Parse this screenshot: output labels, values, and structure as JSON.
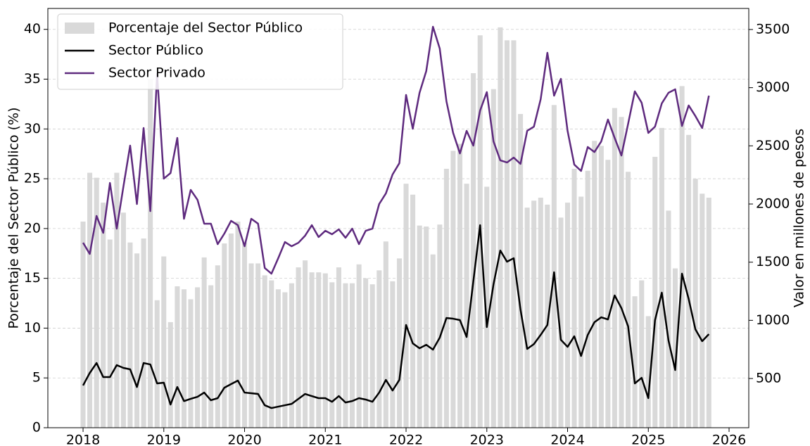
{
  "chart_data": {
    "type": "bar_line",
    "x": [
      2018,
      2018.083,
      2018.167,
      2018.25,
      2018.333,
      2018.417,
      2018.5,
      2018.583,
      2018.667,
      2018.75,
      2018.833,
      2018.917,
      2019,
      2019.083,
      2019.167,
      2019.25,
      2019.333,
      2019.417,
      2019.5,
      2019.583,
      2019.667,
      2019.75,
      2019.833,
      2019.917,
      2020,
      2020.083,
      2020.167,
      2020.25,
      2020.333,
      2020.417,
      2020.5,
      2020.583,
      2020.667,
      2020.75,
      2020.833,
      2020.917,
      2021,
      2021.083,
      2021.167,
      2021.25,
      2021.333,
      2021.417,
      2021.5,
      2021.583,
      2021.667,
      2021.75,
      2021.833,
      2021.917,
      2022,
      2022.083,
      2022.167,
      2022.25,
      2022.333,
      2022.417,
      2022.5,
      2022.583,
      2022.667,
      2022.75,
      2022.833,
      2022.917,
      2023,
      2023.083,
      2023.167,
      2023.25,
      2023.333,
      2023.417,
      2023.5,
      2023.583,
      2023.667,
      2023.75,
      2023.833,
      2023.917,
      2024,
      2024.083,
      2024.167,
      2024.25,
      2024.333,
      2024.417,
      2024.5,
      2024.583,
      2024.667,
      2024.75,
      2024.833,
      2024.917,
      2025,
      2025.083,
      2025.167,
      2025.25,
      2025.333,
      2025.417,
      2025.5,
      2025.583,
      2025.667,
      2025.75
    ],
    "series": [
      {
        "name": "Porcentaje del Sector Público",
        "type": "bar",
        "axis": "y",
        "color": "#d9d9d9",
        "values": [
          20.7,
          25.6,
          25.1,
          22.6,
          18.9,
          25.6,
          21.6,
          18.6,
          17.5,
          19.0,
          35.0,
          12.8,
          17.2,
          10.6,
          14.2,
          13.9,
          12.9,
          14.1,
          17.1,
          14.3,
          16.3,
          18.5,
          19.5,
          20.7,
          18.6,
          16.5,
          16.5,
          15.3,
          14.8,
          13.9,
          13.6,
          14.5,
          16.1,
          16.8,
          15.6,
          15.6,
          15.5,
          14.6,
          16.1,
          14.5,
          14.5,
          16.4,
          15.0,
          14.4,
          15.8,
          18.7,
          14.7,
          17.0,
          24.5,
          23.4,
          20.3,
          20.2,
          17.4,
          20.4,
          26.0,
          27.8,
          28.5,
          24.5,
          35.6,
          39.4,
          24.2,
          34.0,
          40.2,
          38.9,
          38.9,
          31.5,
          22.1,
          22.8,
          23.1,
          22.4,
          32.4,
          21.1,
          22.6,
          26.0,
          23.2,
          25.8,
          28.8,
          28.3,
          26.9,
          32.1,
          31.2,
          25.7,
          13.2,
          14.8,
          11.2,
          27.2,
          30.1,
          21.8,
          16.0,
          34.3,
          29.4,
          25.0,
          23.5,
          23.1
        ]
      },
      {
        "name": "Sector Público",
        "type": "line",
        "axis": "y2",
        "color": "#000000",
        "values": [
          440,
          548,
          633,
          512,
          512,
          615,
          591,
          579,
          427,
          633,
          621,
          458,
          464,
          276,
          427,
          306,
          325,
          343,
          379,
          313,
          331,
          421,
          452,
          482,
          379,
          373,
          367,
          270,
          246,
          258,
          270,
          282,
          325,
          367,
          349,
          331,
          331,
          300,
          349,
          294,
          306,
          331,
          319,
          300,
          379,
          488,
          397,
          488,
          960,
          802,
          760,
          790,
          748,
          851,
          1020,
          1014,
          1002,
          857,
          1335,
          1818,
          942,
          1310,
          1600,
          1504,
          1534,
          1093,
          754,
          796,
          875,
          960,
          1413,
          833,
          772,
          863,
          694,
          875,
          984,
          1026,
          1008,
          1214,
          1105,
          948,
          458,
          506,
          331,
          1002,
          1238,
          827,
          573,
          1401,
          1183,
          923,
          821,
          881
        ]
      },
      {
        "name": "Sector Privado",
        "type": "line",
        "axis": "y2",
        "color": "#5e2a7e",
        "values": [
          1667,
          1571,
          1897,
          1752,
          2181,
          1788,
          2151,
          2502,
          2000,
          2653,
          1939,
          3119,
          2218,
          2266,
          2568,
          1873,
          2121,
          2036,
          1831,
          1831,
          1655,
          1746,
          1855,
          1818,
          1637,
          1873,
          1831,
          1450,
          1401,
          1534,
          1673,
          1637,
          1667,
          1728,
          1818,
          1716,
          1770,
          1740,
          1782,
          1710,
          1788,
          1655,
          1770,
          1788,
          2000,
          2091,
          2254,
          2351,
          2937,
          2647,
          2956,
          3143,
          3524,
          3336,
          2883,
          2611,
          2435,
          2629,
          2502,
          2804,
          2962,
          2538,
          2375,
          2357,
          2399,
          2345,
          2629,
          2665,
          2901,
          3300,
          2931,
          3076,
          2629,
          2339,
          2284,
          2490,
          2447,
          2538,
          2726,
          2568,
          2417,
          2690,
          2968,
          2871,
          2611,
          2665,
          2865,
          2956,
          2986,
          2671,
          2847,
          2756,
          2653,
          2931
        ]
      }
    ],
    "ylabel": "Porcentaje del Sector Público (%)",
    "y2label": "Valor en millones de pesos",
    "xlim": [
      2017.564,
      2026.244
    ],
    "xticks": [
      2018,
      2019,
      2020,
      2021,
      2022,
      2023,
      2024,
      2025,
      2026
    ],
    "ylim": [
      0,
      42.1
    ],
    "yticks": [
      0,
      5,
      10,
      15,
      20,
      25,
      30,
      35,
      40
    ],
    "y2lim": [
      77,
      3681
    ],
    "y2ticks": [
      500,
      1000,
      1500,
      2000,
      2500,
      3000,
      3500
    ],
    "grid": true,
    "legend": "upper left"
  }
}
